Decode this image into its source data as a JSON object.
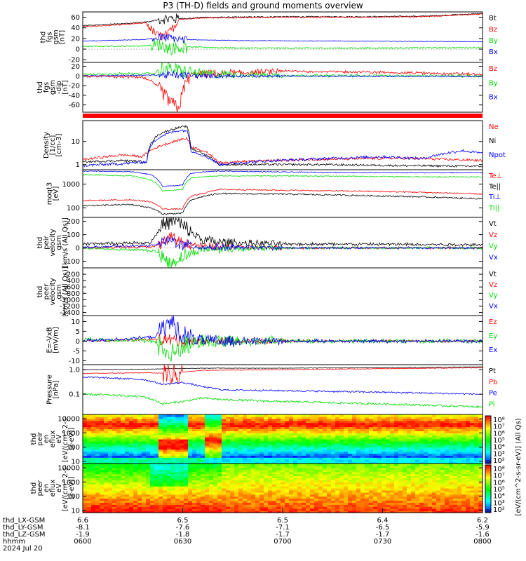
{
  "title": "P3 (TH-D) fields and ground moments overview",
  "date": "2024 Jul 20",
  "colors": {
    "black": "#000000",
    "red": "#ff0000",
    "green": "#00dd00",
    "blue": "#0000ff"
  },
  "chart_data": [
    {
      "type": "line",
      "ylabel": [
        "thd",
        "fgs",
        "gsm",
        "[nT]"
      ],
      "ylim": [
        -25,
        70
      ],
      "ticks": [
        -20,
        0,
        20,
        40,
        60
      ],
      "series": [
        {
          "name": "Bt",
          "color": "black",
          "shape": "bt"
        },
        {
          "name": "Bz",
          "color": "red",
          "shape": "bz"
        },
        {
          "name": "By",
          "color": "green",
          "shape": "by"
        },
        {
          "name": "Bx",
          "color": "blue",
          "shape": "bx"
        }
      ]
    },
    {
      "type": "line",
      "ylabel": [
        "thd",
        "fgs",
        "gsm",
        "-dip",
        "[nT]"
      ],
      "ylim": [
        -75,
        28
      ],
      "ticks": [
        -60,
        -40,
        -20,
        0,
        20
      ],
      "series": [
        {
          "name": "Bz",
          "color": "red",
          "shape": "dbz"
        },
        {
          "name": "By",
          "color": "green",
          "shape": "dby"
        },
        {
          "name": "Bx",
          "color": "blue",
          "shape": "dbx"
        }
      ]
    },
    {
      "type": "line",
      "ylabel": [
        "Density",
        "[1/cc]",
        "[cm-3]"
      ],
      "ylim": [
        0.6,
        80
      ],
      "log": true,
      "ticks": [
        1,
        10
      ],
      "series": [
        {
          "name": "Ne",
          "color": "red",
          "shape": "ne"
        },
        {
          "name": "Ni",
          "color": "black",
          "shape": "ni"
        },
        {
          "name": "Npot",
          "color": "blue",
          "shape": "npot"
        }
      ]
    },
    {
      "type": "line",
      "ylabel": [
        "moqt3",
        "[eV]"
      ],
      "ylim": [
        40,
        4000
      ],
      "log": true,
      "ticks": [
        100,
        1000
      ],
      "series": [
        {
          "name": "Te⊥",
          "color": "red",
          "shape": "teperp"
        },
        {
          "name": "Te||",
          "color": "black",
          "shape": "tepar"
        },
        {
          "name": "Ti⊥",
          "color": "blue",
          "shape": "tiperp"
        },
        {
          "name": "Ti||",
          "color": "green",
          "shape": "tipar"
        }
      ]
    },
    {
      "type": "line",
      "ylabel": [
        "thd",
        "peir",
        "velocity",
        "gsm",
        "[km/s (All Qs)]"
      ],
      "ylim": [
        -150,
        230
      ],
      "ticks": [
        -100,
        0,
        100,
        200
      ],
      "series": [
        {
          "name": "Vt",
          "color": "black",
          "shape": "vt"
        },
        {
          "name": "Vz",
          "color": "red",
          "shape": "vz"
        },
        {
          "name": "Vy",
          "color": "green",
          "shape": "vy"
        },
        {
          "name": "Vx",
          "color": "blue",
          "shape": "vx"
        }
      ]
    },
    {
      "type": "line",
      "ylabel": [
        "thd",
        "peer",
        "velocity",
        "gsm",
        "[km/s (All Qs)]"
      ],
      "ylim": [
        -1500,
        0
      ],
      "ticks": [
        -200,
        -400,
        -600,
        -800,
        -1000,
        -1200,
        -1400
      ],
      "series": [
        {
          "name": "Vt",
          "color": "black",
          "shape": "none"
        },
        {
          "name": "Vz",
          "color": "red",
          "shape": "none"
        },
        {
          "name": "Vy",
          "color": "green",
          "shape": "none"
        },
        {
          "name": "Vx",
          "color": "blue",
          "shape": "none"
        }
      ]
    },
    {
      "type": "line",
      "ylabel": [
        "E=-VxB",
        "[mV/m]"
      ],
      "ylim": [
        -12,
        13
      ],
      "ticks": [
        -10,
        -5,
        0,
        5,
        10
      ],
      "series": [
        {
          "name": "Ez",
          "color": "red",
          "shape": "ez"
        },
        {
          "name": "Ey",
          "color": "green",
          "shape": "ey"
        },
        {
          "name": "Ex",
          "color": "blue",
          "shape": "ex"
        }
      ]
    },
    {
      "type": "line",
      "ylabel": [
        "Pressure",
        "[nPa]"
      ],
      "ylim": [
        0.015,
        1.6
      ],
      "log": true,
      "ticks": [
        0.1,
        1.0
      ],
      "tick_labels": [
        "0.1",
        "1.0"
      ],
      "series": [
        {
          "name": "Pt",
          "color": "black",
          "shape": "pt"
        },
        {
          "name": "Pb",
          "color": "red",
          "shape": "pb"
        },
        {
          "name": "Pe",
          "color": "blue",
          "shape": "pe"
        },
        {
          "name": "Pi",
          "color": "green",
          "shape": "pi"
        }
      ]
    },
    {
      "type": "heatmap",
      "ylabel": [
        "thd",
        "peir",
        "en",
        "eflux",
        "eV",
        "[eV/(cm^2-s-",
        "sr-eV)]"
      ],
      "ylim": [
        7,
        20000
      ],
      "log": true,
      "ticks": [
        10,
        100,
        1000,
        10000
      ],
      "shape": "ions"
    },
    {
      "type": "heatmap",
      "ylabel": [
        "thd",
        "peer",
        "en",
        "eflux",
        "eV",
        "[eV/(cm^2-s-",
        "sr-eV)]"
      ],
      "ylim": [
        7,
        20000
      ],
      "log": true,
      "ticks": [
        10,
        100,
        1000,
        10000
      ],
      "shape": "electrons"
    }
  ],
  "colorbar": {
    "label": "[eV/(cm^2-s-sr-eV)] (All Qs)",
    "ticks": [
      "10⁸",
      "10⁷",
      "10⁶",
      "10⁵",
      "10⁴",
      "10³",
      "10²"
    ]
  },
  "colorbar2": {
    "ticks": [
      "10⁸",
      "10⁷",
      "10⁶",
      "10⁵",
      "10⁴",
      "10³",
      "10²"
    ]
  },
  "xaxis": {
    "rows": [
      {
        "label": "thd_LX-GSM",
        "values": [
          "6.6",
          "6.5",
          "6.5",
          "6.4",
          "6.2"
        ]
      },
      {
        "label": "thd_LY-GSM",
        "values": [
          "-8.1",
          "-7.6",
          "-7.1",
          "-6.5",
          "-5.9"
        ]
      },
      {
        "label": "thd_LZ-GSM",
        "values": [
          "-1.9",
          "-1.8",
          "-1.7",
          "-1.7",
          "-1.6"
        ]
      },
      {
        "label": "hhmm",
        "values": [
          "0600",
          "0630",
          "0700",
          "0730",
          "0800"
        ]
      }
    ]
  }
}
